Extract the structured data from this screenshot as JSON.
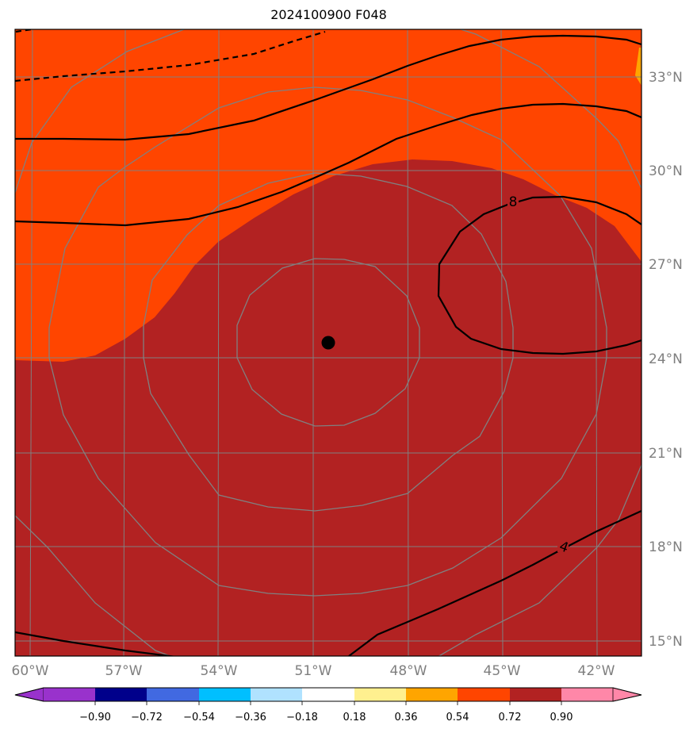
{
  "title": "2024100900 F048",
  "map": {
    "lon_labels": [
      "60°W",
      "57°W",
      "54°W",
      "51°W",
      "48°W",
      "45°W",
      "42°W"
    ],
    "lat_labels": [
      "33°N",
      "30°N",
      "27°N",
      "24°N",
      "21°N",
      "18°N",
      "15°N"
    ],
    "contour_labels": [
      "8",
      "4"
    ],
    "colors": {
      "field_high": "#b22222",
      "field_mid": "#ff4500",
      "field_orange": "#ffa500",
      "grid": "#808080",
      "contour": "#000000",
      "center_marker": "#000000"
    }
  },
  "colorbar": {
    "tick_labels": [
      "−0.90",
      "−0.72",
      "−0.54",
      "−0.36",
      "−0.18",
      "0.18",
      "0.36",
      "0.54",
      "0.72",
      "0.90"
    ],
    "colors": [
      "#9932cc",
      "#00008b",
      "#4169e1",
      "#00bfff",
      "#b0e2ff",
      "#ffffff",
      "#fff08f",
      "#ffa500",
      "#ff4500",
      "#b22222",
      "#ff87a8"
    ]
  }
}
